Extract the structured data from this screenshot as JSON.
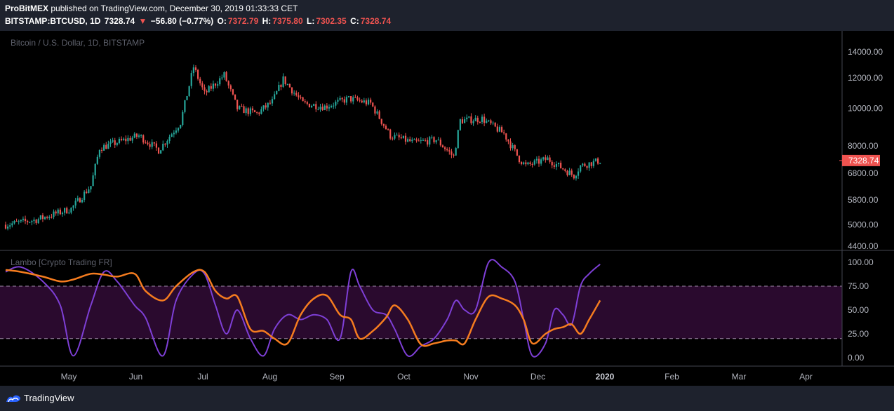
{
  "header": {
    "publisher": "ProBitMEX",
    "published_text": "published on TradingView.com, December 30, 2019 01:33:33 CET",
    "symbol": "BITSTAMP:BTCUSD, 1D",
    "last": "7328.74",
    "arrow": "▼",
    "change": "−56.80 (−0.77%)",
    "o_label": "O:",
    "o_value": "7372.79",
    "h_label": "H:",
    "h_value": "7375.80",
    "l_label": "L:",
    "l_value": "7302.35",
    "c_label": "C:",
    "c_value": "7328.74"
  },
  "main_pane": {
    "title": "Bitcoin / U.S. Dollar, 1D, BITSTAMP",
    "price_label": "7328.74",
    "y_ticks": [
      "14000.00",
      "12000.00",
      "10000.00",
      "8000.00",
      "6800.00",
      "5800.00",
      "5000.00",
      "4400.00"
    ],
    "up_color": "#26a69a",
    "down_color": "#ef5350"
  },
  "indicator_pane": {
    "title": "Lambo [Crypto Trading FR]",
    "y_ticks": [
      "100.00",
      "75.00",
      "50.00",
      "25.00",
      "0.00"
    ],
    "band_color": "#2a0a2e",
    "purple_color": "#7e3fd6",
    "orange_color": "#f57c1f"
  },
  "x_axis": {
    "labels": [
      "May",
      "Jun",
      "Jul",
      "Aug",
      "Sep",
      "Oct",
      "Nov",
      "Dec",
      "2020",
      "Feb",
      "Mar",
      "Apr"
    ]
  },
  "footer": {
    "brand": "TradingView"
  },
  "chart_data": [
    {
      "type": "candlestick",
      "title": "Bitcoin / U.S. Dollar, 1D, BITSTAMP",
      "scale": "log",
      "ylim": [
        4400,
        14000
      ],
      "x": [
        "2019-04-01",
        "2019-04-15",
        "2019-05-01",
        "2019-05-10",
        "2019-05-14",
        "2019-05-20",
        "2019-06-01",
        "2019-06-10",
        "2019-06-20",
        "2019-06-26",
        "2019-07-01",
        "2019-07-10",
        "2019-07-16",
        "2019-07-25",
        "2019-08-01",
        "2019-08-06",
        "2019-08-15",
        "2019-08-25",
        "2019-09-05",
        "2019-09-15",
        "2019-09-24",
        "2019-10-05",
        "2019-10-15",
        "2019-10-23",
        "2019-10-26",
        "2019-11-05",
        "2019-11-15",
        "2019-11-22",
        "2019-11-25",
        "2019-12-05",
        "2019-12-17",
        "2019-12-20",
        "2019-12-29"
      ],
      "close": [
        5000,
        5150,
        5500,
        6300,
        7900,
        8100,
        8500,
        7800,
        9200,
        12800,
        10900,
        12200,
        10000,
        9700,
        10400,
        11900,
        10300,
        10100,
        10600,
        10300,
        8500,
        8150,
        8300,
        7500,
        9300,
        9400,
        8600,
        7400,
        7100,
        7400,
        6700,
        7100,
        7328.74
      ],
      "last": 7328.74
    },
    {
      "type": "line",
      "title": "Lambo [Crypto Trading FR]",
      "ylim": [
        0,
        100
      ],
      "bands": [
        20,
        75
      ],
      "x": [
        "2019-04-01",
        "2019-04-08",
        "2019-04-18",
        "2019-04-26",
        "2019-05-02",
        "2019-05-10",
        "2019-05-16",
        "2019-05-22",
        "2019-05-30",
        "2019-06-04",
        "2019-06-12",
        "2019-06-18",
        "2019-06-26",
        "2019-07-01",
        "2019-07-06",
        "2019-07-11",
        "2019-07-16",
        "2019-07-22",
        "2019-07-28",
        "2019-08-02",
        "2019-08-08",
        "2019-08-14",
        "2019-08-20",
        "2019-08-26",
        "2019-09-01",
        "2019-09-06",
        "2019-09-10",
        "2019-09-16",
        "2019-09-22",
        "2019-09-26",
        "2019-10-02",
        "2019-10-08",
        "2019-10-14",
        "2019-10-20",
        "2019-10-24",
        "2019-10-28",
        "2019-11-02",
        "2019-11-08",
        "2019-11-14",
        "2019-11-20",
        "2019-11-24",
        "2019-11-28",
        "2019-12-04",
        "2019-12-08",
        "2019-12-12",
        "2019-12-16",
        "2019-12-20",
        "2019-12-24",
        "2019-12-29"
      ],
      "series": [
        {
          "values": [
            90,
            95,
            80,
            55,
            2,
            55,
            90,
            80,
            55,
            42,
            2,
            60,
            88,
            88,
            55,
            25,
            50,
            20,
            2,
            30,
            45,
            40,
            45,
            40,
            20,
            90,
            75,
            50,
            45,
            30,
            2,
            12,
            20,
            40,
            60,
            50,
            50,
            100,
            95,
            80,
            40,
            2,
            15,
            50,
            45,
            35,
            75,
            88,
            98
          ]
        },
        {
          "values": [
            92,
            90,
            85,
            80,
            82,
            88,
            87,
            85,
            88,
            70,
            60,
            75,
            90,
            90,
            70,
            62,
            64,
            30,
            28,
            20,
            15,
            45,
            62,
            65,
            45,
            40,
            20,
            28,
            42,
            55,
            40,
            14,
            15,
            18,
            18,
            15,
            40,
            64,
            62,
            55,
            40,
            15,
            25,
            30,
            32,
            35,
            25,
            40,
            60
          ]
        }
      ]
    }
  ]
}
